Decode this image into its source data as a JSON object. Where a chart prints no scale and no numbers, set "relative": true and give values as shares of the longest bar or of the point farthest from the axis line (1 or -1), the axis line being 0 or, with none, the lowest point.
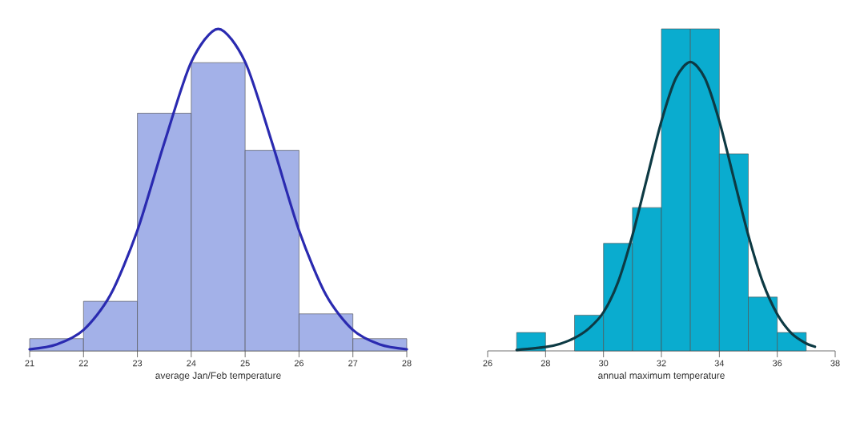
{
  "chart_data": [
    {
      "type": "histogram",
      "relative": true,
      "xlabel": "average Jan/Feb temperature",
      "xlim": [
        21,
        28
      ],
      "xticks": [
        21,
        22,
        23,
        24,
        25,
        26,
        27,
        28
      ],
      "tick_labels": "x",
      "series": [
        {
          "type": "histogram",
          "color": "#a3b1e8",
          "bins": [
            21,
            22,
            23,
            24,
            25,
            26,
            27,
            28
          ],
          "values": [
            0.038,
            0.154,
            0.738,
            0.895,
            0.623,
            0.115,
            0.038
          ]
        },
        {
          "type": "line",
          "color": "#2a2ab0",
          "x": [
            21,
            21.5,
            22,
            22.5,
            23,
            23.5,
            24,
            24.5,
            25,
            25.5,
            26,
            26.5,
            27,
            27.5,
            28
          ],
          "values": [
            0.005,
            0.02,
            0.065,
            0.174,
            0.374,
            0.646,
            0.897,
            1,
            0.897,
            0.646,
            0.374,
            0.174,
            0.065,
            0.02,
            0.005
          ]
        }
      ]
    },
    {
      "type": "histogram",
      "relative": true,
      "xlabel": "annual maximum temperature",
      "xlim": [
        26,
        38
      ],
      "xticks": [
        26,
        28,
        30,
        32,
        34,
        36,
        38
      ],
      "tick_labels": "x",
      "series": [
        {
          "type": "histogram",
          "color": "#0aaccf",
          "bins": [
            27,
            28,
            29,
            30,
            31,
            32,
            33,
            34,
            35,
            36,
            37
          ],
          "values": [
            0.057,
            null,
            0.111,
            0.334,
            0.445,
            1,
            1,
            0.612,
            0.167,
            0.057
          ]
        },
        {
          "type": "line",
          "color": "#0d3a44",
          "x": [
            27,
            28,
            28.5,
            29,
            29.5,
            30,
            30.5,
            31,
            31.5,
            32,
            32.5,
            33,
            33.5,
            34,
            34.5,
            35,
            35.5,
            36,
            36.5,
            37,
            37.3
          ],
          "values": [
            0.003,
            0.012,
            0.022,
            0.04,
            0.07,
            0.12,
            0.213,
            0.359,
            0.536,
            0.713,
            0.847,
            0.897,
            0.847,
            0.713,
            0.536,
            0.359,
            0.213,
            0.114,
            0.054,
            0.023,
            0.013
          ]
        }
      ]
    }
  ]
}
